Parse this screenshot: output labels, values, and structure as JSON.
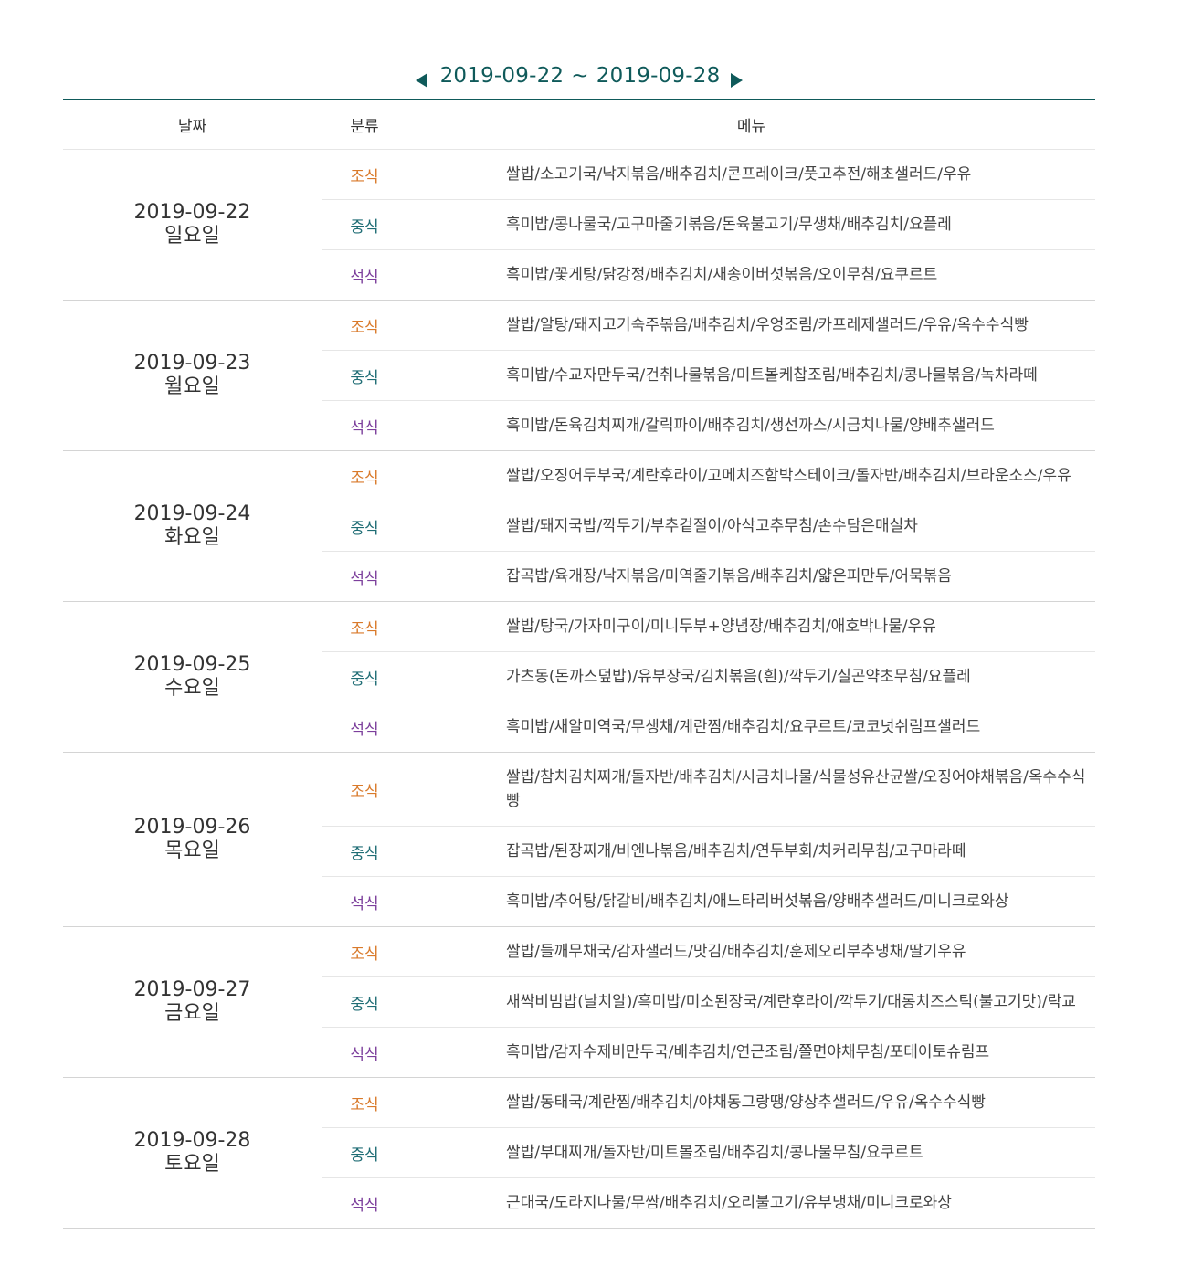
{
  "nav": {
    "start_date": "2019-09-22",
    "separator": "~",
    "end_date": "2019-09-28"
  },
  "table": {
    "headers": {
      "date": "날짜",
      "category": "분류",
      "menu": "메뉴"
    },
    "days": [
      {
        "date": "2019-09-22",
        "weekday": "일요일",
        "meals": [
          {
            "type": "조식",
            "menu": "쌀밥/소고기국/낙지볶음/배추김치/콘프레이크/풋고추전/해초샐러드/우유"
          },
          {
            "type": "중식",
            "menu": "흑미밥/콩나물국/고구마줄기볶음/돈육불고기/무생채/배추김치/요플레"
          },
          {
            "type": "석식",
            "menu": "흑미밥/꽃게탕/닭강정/배추김치/새송이버섯볶음/오이무침/요쿠르트"
          }
        ]
      },
      {
        "date": "2019-09-23",
        "weekday": "월요일",
        "meals": [
          {
            "type": "조식",
            "menu": "쌀밥/알탕/돼지고기숙주볶음/배추김치/우엉조림/카프레제샐러드/우유/옥수수식빵"
          },
          {
            "type": "중식",
            "menu": "흑미밥/수교자만두국/건취나물볶음/미트볼케찹조림/배추김치/콩나물볶음/녹차라떼"
          },
          {
            "type": "석식",
            "menu": "흑미밥/돈육김치찌개/갈릭파이/배추김치/생선까스/시금치나물/양배추샐러드"
          }
        ]
      },
      {
        "date": "2019-09-24",
        "weekday": "화요일",
        "meals": [
          {
            "type": "조식",
            "menu": "쌀밥/오징어두부국/계란후라이/고메치즈함박스테이크/돌자반/배추김치/브라운소스/우유"
          },
          {
            "type": "중식",
            "menu": "쌀밥/돼지국밥/깍두기/부추겉절이/아삭고추무침/손수담은매실차"
          },
          {
            "type": "석식",
            "menu": "잡곡밥/육개장/낙지볶음/미역줄기볶음/배추김치/얇은피만두/어묵볶음"
          }
        ]
      },
      {
        "date": "2019-09-25",
        "weekday": "수요일",
        "meals": [
          {
            "type": "조식",
            "menu": "쌀밥/탕국/가자미구이/미니두부+양념장/배추김치/애호박나물/우유"
          },
          {
            "type": "중식",
            "menu": "가츠동(돈까스덮밥)/유부장국/김치볶음(흰)/깍두기/실곤약초무침/요플레"
          },
          {
            "type": "석식",
            "menu": "흑미밥/새알미역국/무생채/계란찜/배추김치/요쿠르트/코코넛쉬림프샐러드"
          }
        ]
      },
      {
        "date": "2019-09-26",
        "weekday": "목요일",
        "meals": [
          {
            "type": "조식",
            "menu": "쌀밥/참치김치찌개/돌자반/배추김치/시금치나물/식물성유산균쌀/오징어야채볶음/옥수수식빵"
          },
          {
            "type": "중식",
            "menu": "잡곡밥/된장찌개/비엔나볶음/배추김치/연두부회/치커리무침/고구마라떼"
          },
          {
            "type": "석식",
            "menu": "흑미밥/추어탕/닭갈비/배추김치/애느타리버섯볶음/양배추샐러드/미니크로와상"
          }
        ]
      },
      {
        "date": "2019-09-27",
        "weekday": "금요일",
        "meals": [
          {
            "type": "조식",
            "menu": "쌀밥/들깨무채국/감자샐러드/맛김/배추김치/훈제오리부추냉채/딸기우유"
          },
          {
            "type": "중식",
            "menu": "새싹비빔밥(날치알)/흑미밥/미소된장국/계란후라이/깍두기/대롱치즈스틱(불고기맛)/락교"
          },
          {
            "type": "석식",
            "menu": "흑미밥/감자수제비만두국/배추김치/연근조림/쫄면야채무침/포테이토슈림프"
          }
        ]
      },
      {
        "date": "2019-09-28",
        "weekday": "토요일",
        "meals": [
          {
            "type": "조식",
            "menu": "쌀밥/동태국/계란찜/배추김치/야채동그랑땡/양상추샐러드/우유/옥수수식빵"
          },
          {
            "type": "중식",
            "menu": "쌀밥/부대찌개/돌자반/미트볼조림/배추김치/콩나물무침/요쿠르트"
          },
          {
            "type": "석식",
            "menu": "근대국/도라지나물/무쌈/배추김치/오리불고기/유부냉채/미니크로와상"
          }
        ]
      }
    ]
  },
  "colors": {
    "accent": "#0f5a5a",
    "breakfast": "#d97a2b",
    "lunch": "#1f6d75",
    "dinner": "#7c3f9c"
  }
}
